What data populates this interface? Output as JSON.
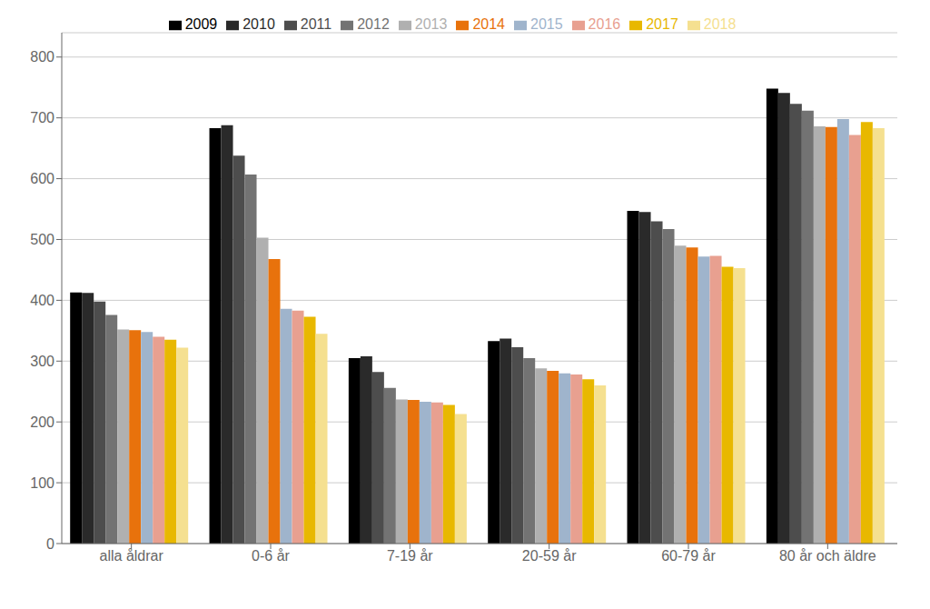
{
  "chart_data": {
    "type": "bar",
    "categories": [
      "alla åldrar",
      "0-6 år",
      "7-19 år",
      "20-59 år",
      "60-79 år",
      "80 år och äldre"
    ],
    "series": [
      {
        "name": "2009",
        "color": "#000000",
        "values": [
          413,
          683,
          305,
          333,
          547,
          748
        ]
      },
      {
        "name": "2010",
        "color": "#2a2a2a",
        "values": [
          412,
          688,
          308,
          337,
          545,
          741
        ]
      },
      {
        "name": "2011",
        "color": "#4d4d4d",
        "values": [
          398,
          638,
          282,
          323,
          530,
          723
        ]
      },
      {
        "name": "2012",
        "color": "#737373",
        "values": [
          376,
          607,
          256,
          305,
          517,
          712
        ]
      },
      {
        "name": "2013",
        "color": "#b0b0b0",
        "values": [
          352,
          503,
          237,
          288,
          490,
          686
        ]
      },
      {
        "name": "2014",
        "color": "#e8720c",
        "values": [
          351,
          468,
          236,
          284,
          487,
          685
        ]
      },
      {
        "name": "2015",
        "color": "#9fb4cc",
        "values": [
          348,
          386,
          233,
          280,
          472,
          698
        ]
      },
      {
        "name": "2016",
        "color": "#e8a090",
        "values": [
          340,
          383,
          232,
          278,
          473,
          672
        ]
      },
      {
        "name": "2017",
        "color": "#e8b800",
        "values": [
          335,
          373,
          228,
          270,
          455,
          693
        ]
      },
      {
        "name": "2018",
        "color": "#f5e090",
        "values": [
          322,
          345,
          213,
          260,
          453,
          683
        ]
      }
    ],
    "ylim": [
      0,
      840
    ],
    "yticks": [
      0,
      100,
      200,
      300,
      400,
      500,
      600,
      700,
      800
    ],
    "grid": true,
    "legend": "top"
  }
}
